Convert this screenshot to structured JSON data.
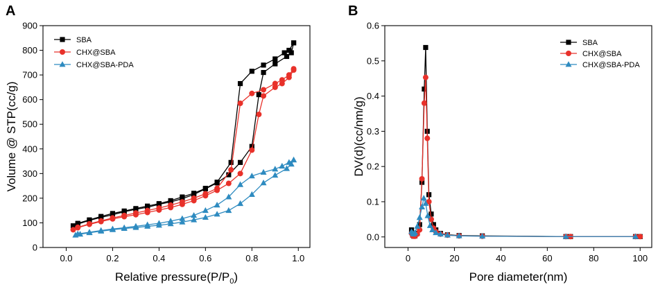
{
  "chart_data": [
    {
      "panel": "A",
      "type": "line",
      "xlabel": "Relative pressure(P/P",
      "xlabel_subscript": "0",
      "xlabel_suffix": ")",
      "ylabel": "Volume @ STP(cc/g)",
      "xlim": [
        -0.1,
        1.05
      ],
      "ylim": [
        0,
        900
      ],
      "xticks": [
        0.0,
        0.2,
        0.4,
        0.6,
        0.8,
        1.0
      ],
      "xtick_labels": [
        "0.0",
        "0.2",
        "0.4",
        "0.6",
        "0.8",
        "1.0"
      ],
      "yticks": [
        0,
        100,
        200,
        300,
        400,
        500,
        600,
        700,
        800,
        900
      ],
      "ytick_labels": [
        "0",
        "100",
        "200",
        "300",
        "400",
        "500",
        "600",
        "700",
        "800",
        "900"
      ],
      "legend_position": "top-left",
      "series": [
        {
          "name": "SBA",
          "color": "#000000",
          "marker": "square",
          "adsorption": [
            [
              0.03,
              88
            ],
            [
              0.05,
              95
            ],
            [
              0.1,
              110
            ],
            [
              0.15,
              122
            ],
            [
              0.2,
              133
            ],
            [
              0.25,
              145
            ],
            [
              0.3,
              155
            ],
            [
              0.35,
              163
            ],
            [
              0.4,
              175
            ],
            [
              0.45,
              185
            ],
            [
              0.5,
              198
            ],
            [
              0.55,
              215
            ],
            [
              0.6,
              238
            ],
            [
              0.65,
              262
            ],
            [
              0.7,
              295
            ],
            [
              0.75,
              345
            ],
            [
              0.8,
              410
            ],
            [
              0.83,
              620
            ],
            [
              0.85,
              710
            ],
            [
              0.9,
              745
            ],
            [
              0.95,
              775
            ],
            [
              0.97,
              790
            ],
            [
              0.98,
              830
            ]
          ],
          "desorption": [
            [
              0.98,
              830
            ],
            [
              0.96,
              800
            ],
            [
              0.94,
              790
            ],
            [
              0.9,
              765
            ],
            [
              0.85,
              740
            ],
            [
              0.8,
              715
            ],
            [
              0.75,
              665
            ],
            [
              0.71,
              345
            ],
            [
              0.65,
              265
            ],
            [
              0.6,
              240
            ],
            [
              0.55,
              220
            ],
            [
              0.5,
              205
            ],
            [
              0.45,
              190
            ],
            [
              0.4,
              178
            ],
            [
              0.35,
              168
            ],
            [
              0.3,
              158
            ],
            [
              0.25,
              148
            ],
            [
              0.2,
              138
            ],
            [
              0.15,
              126
            ],
            [
              0.1,
              112
            ],
            [
              0.05,
              98
            ]
          ]
        },
        {
          "name": "CHX@SBA",
          "color": "#e8312a",
          "marker": "circle",
          "adsorption": [
            [
              0.03,
              72
            ],
            [
              0.05,
              80
            ],
            [
              0.1,
              94
            ],
            [
              0.15,
              105
            ],
            [
              0.2,
              116
            ],
            [
              0.25,
              125
            ],
            [
              0.3,
              133
            ],
            [
              0.35,
              142
            ],
            [
              0.4,
              152
            ],
            [
              0.45,
              162
            ],
            [
              0.5,
              175
            ],
            [
              0.55,
              190
            ],
            [
              0.6,
              210
            ],
            [
              0.65,
              232
            ],
            [
              0.7,
              260
            ],
            [
              0.75,
              300
            ],
            [
              0.8,
              395
            ],
            [
              0.83,
              540
            ],
            [
              0.85,
              615
            ],
            [
              0.9,
              650
            ],
            [
              0.93,
              665
            ],
            [
              0.96,
              690
            ],
            [
              0.98,
              720
            ]
          ],
          "desorption": [
            [
              0.98,
              725
            ],
            [
              0.96,
              700
            ],
            [
              0.93,
              680
            ],
            [
              0.9,
              665
            ],
            [
              0.85,
              640
            ],
            [
              0.8,
              625
            ],
            [
              0.75,
              585
            ],
            [
              0.71,
              315
            ],
            [
              0.65,
              240
            ],
            [
              0.6,
              218
            ],
            [
              0.55,
              200
            ],
            [
              0.5,
              185
            ],
            [
              0.45,
              172
            ],
            [
              0.4,
              160
            ],
            [
              0.35,
              150
            ],
            [
              0.3,
              140
            ],
            [
              0.25,
              130
            ],
            [
              0.2,
              120
            ],
            [
              0.15,
              108
            ],
            [
              0.1,
              96
            ],
            [
              0.05,
              82
            ]
          ]
        },
        {
          "name": "CHX@SBA-PDA",
          "color": "#2e8bc0",
          "marker": "triangle",
          "adsorption": [
            [
              0.04,
              50
            ],
            [
              0.06,
              54
            ],
            [
              0.1,
              60
            ],
            [
              0.15,
              66
            ],
            [
              0.2,
              72
            ],
            [
              0.25,
              77
            ],
            [
              0.3,
              81
            ],
            [
              0.35,
              86
            ],
            [
              0.4,
              90
            ],
            [
              0.45,
              96
            ],
            [
              0.5,
              103
            ],
            [
              0.55,
              112
            ],
            [
              0.6,
              122
            ],
            [
              0.65,
              135
            ],
            [
              0.7,
              150
            ],
            [
              0.75,
              178
            ],
            [
              0.8,
              215
            ],
            [
              0.85,
              262
            ],
            [
              0.9,
              293
            ],
            [
              0.95,
              320
            ],
            [
              0.97,
              338
            ],
            [
              0.98,
              355
            ]
          ],
          "desorption": [
            [
              0.98,
              355
            ],
            [
              0.96,
              345
            ],
            [
              0.93,
              330
            ],
            [
              0.9,
              318
            ],
            [
              0.85,
              305
            ],
            [
              0.8,
              290
            ],
            [
              0.75,
              255
            ],
            [
              0.7,
              205
            ],
            [
              0.65,
              172
            ],
            [
              0.6,
              150
            ],
            [
              0.55,
              130
            ],
            [
              0.5,
              117
            ],
            [
              0.45,
              107
            ],
            [
              0.4,
              98
            ],
            [
              0.35,
              92
            ],
            [
              0.3,
              86
            ],
            [
              0.25,
              80
            ],
            [
              0.2,
              75
            ],
            [
              0.15,
              69
            ],
            [
              0.1,
              62
            ],
            [
              0.05,
              55
            ]
          ]
        }
      ]
    },
    {
      "panel": "B",
      "type": "line",
      "xlabel": "Pore diameter(nm)",
      "ylabel": "DV(d)(cc/nm/g)",
      "xlim": [
        -10,
        105
      ],
      "ylim": [
        -0.03,
        0.6
      ],
      "xticks": [
        0,
        20,
        40,
        60,
        80,
        100
      ],
      "xtick_labels": [
        "0",
        "20",
        "40",
        "60",
        "80",
        "100"
      ],
      "yticks": [
        0.0,
        0.1,
        0.2,
        0.3,
        0.4,
        0.5,
        0.6
      ],
      "ytick_labels": [
        "0.0",
        "0.1",
        "0.2",
        "0.3",
        "0.4",
        "0.5",
        "0.6"
      ],
      "legend_position": "top-right",
      "series": [
        {
          "name": "SBA",
          "color": "#000000",
          "marker": "square",
          "points": [
            [
              1.5,
              0.02
            ],
            [
              2,
              0.005
            ],
            [
              2.5,
              0.002
            ],
            [
              3,
              0.003
            ],
            [
              4,
              0.01
            ],
            [
              5,
              0.035
            ],
            [
              6,
              0.155
            ],
            [
              7,
              0.42
            ],
            [
              7.6,
              0.538
            ],
            [
              8.3,
              0.3
            ],
            [
              9,
              0.12
            ],
            [
              10,
              0.065
            ],
            [
              11,
              0.035
            ],
            [
              12,
              0.02
            ],
            [
              14,
              0.01
            ],
            [
              17,
              0.006
            ],
            [
              22,
              0.004
            ],
            [
              32,
              0.003
            ],
            [
              68,
              0.001
            ],
            [
              70,
              0.001
            ],
            [
              98,
              0.001
            ],
            [
              100,
              0.001
            ]
          ]
        },
        {
          "name": "CHX@SBA",
          "color": "#e8312a",
          "marker": "circle",
          "points": [
            [
              1.5,
              0.01
            ],
            [
              2,
              0.003
            ],
            [
              2.5,
              0.002
            ],
            [
              3,
              0.002
            ],
            [
              4,
              0.008
            ],
            [
              5,
              0.02
            ],
            [
              6,
              0.165
            ],
            [
              7,
              0.38
            ],
            [
              7.6,
              0.453
            ],
            [
              8.3,
              0.28
            ],
            [
              9,
              0.1
            ],
            [
              10,
              0.05
            ],
            [
              11,
              0.025
            ],
            [
              12,
              0.015
            ],
            [
              14,
              0.008
            ],
            [
              17,
              0.005
            ],
            [
              22,
              0.003
            ],
            [
              32,
              0.002
            ],
            [
              68,
              0.001
            ],
            [
              70,
              0.001
            ],
            [
              98,
              0.001
            ],
            [
              100,
              0.001
            ]
          ]
        },
        {
          "name": "CHX@SBA-PDA",
          "color": "#2e8bc0",
          "marker": "triangle",
          "points": [
            [
              1.5,
              0.015
            ],
            [
              2,
              0.01
            ],
            [
              2.5,
              0.008
            ],
            [
              3,
              0.012
            ],
            [
              4,
              0.03
            ],
            [
              5,
              0.055
            ],
            [
              6,
              0.085
            ],
            [
              6.8,
              0.11
            ],
            [
              7.6,
              0.095
            ],
            [
              8.5,
              0.06
            ],
            [
              9.5,
              0.032
            ],
            [
              10.5,
              0.02
            ],
            [
              12,
              0.012
            ],
            [
              14,
              0.008
            ],
            [
              17,
              0.005
            ],
            [
              22,
              0.003
            ],
            [
              32,
              0.002
            ],
            [
              68,
              0.001
            ],
            [
              98,
              0.001
            ]
          ]
        }
      ]
    }
  ]
}
